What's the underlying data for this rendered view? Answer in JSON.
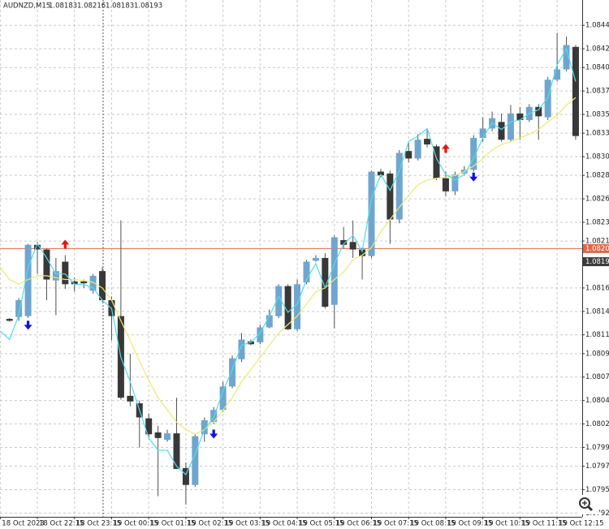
{
  "chart_data": {
    "type": "candlestick",
    "symbol": "AUDNZD,M15",
    "header_ohlc": [
      1.08183,
      1.08216,
      1.08183,
      1.08193
    ],
    "categories": [
      "18 Oct 2023",
      null,
      null,
      null,
      "18 Oct 22:15",
      null,
      null,
      null,
      "18 Oct 23:15",
      null,
      null,
      null,
      "19 Oct 00:15",
      null,
      null,
      null,
      "19 Oct 01:15",
      null,
      null,
      null,
      "19 Oct 02:15",
      null,
      null,
      null,
      "19 Oct 03:15",
      null,
      null,
      null,
      "19 Oct 04:15",
      null,
      null,
      null,
      "19 Oct 05:15",
      null,
      null,
      null,
      "19 Oct 06:15",
      null,
      null,
      null,
      "19 Oct 07:15",
      null,
      null,
      null,
      "19 Oct 08:15",
      null,
      null,
      null,
      "19 Oct 09:15",
      null,
      null,
      null,
      "19 Oct 10:15",
      null,
      null,
      null,
      "19 Oct 11:15",
      null,
      null,
      null,
      "19 Oct 12:15",
      null,
      null
    ],
    "open": [
      null,
      1.08132,
      1.08134,
      1.08135,
      1.08211,
      1.08206,
      1.08173,
      1.08193,
      1.08172,
      1.08172,
      1.08162,
      1.08183,
      1.08152,
      1.08135,
      1.0805,
      1.08042,
      1.08026,
      1.08011,
      1.08003,
      1.0801,
      1.07973,
      1.07955,
      1.08009,
      1.08022,
      1.08035,
      1.0806,
      1.08089,
      1.08108,
      1.08107,
      1.08123,
      1.08135,
      1.08167,
      1.08121,
      1.08171,
      1.08194,
      1.08197,
      1.08147,
      1.08216,
      1.08214,
      1.08206,
      1.08199,
      1.08289,
      1.08287,
      1.08238,
      1.08311,
      1.08303,
      1.08324,
      1.08316,
      1.08282,
      1.08268,
      1.08287,
      1.08291,
      1.08325,
      1.08335,
      1.08342,
      1.08323,
      1.08351,
      1.08344,
      1.08358,
      1.08347,
      1.08387,
      1.08398,
      1.08422
    ],
    "high": [
      null,
      1.08133,
      1.08154,
      1.08212,
      1.08214,
      1.08207,
      1.08197,
      1.082,
      1.08176,
      1.08174,
      1.0818,
      1.08187,
      1.08156,
      1.08237,
      1.08095,
      1.08045,
      1.08031,
      1.08018,
      1.08014,
      1.08048,
      1.07979,
      1.08009,
      1.08027,
      1.08038,
      1.08065,
      1.08093,
      1.08117,
      1.0811,
      1.08126,
      1.08142,
      1.08169,
      1.08169,
      1.08174,
      1.08195,
      1.082,
      1.08202,
      1.08221,
      1.0823,
      1.08237,
      1.08208,
      1.0829,
      1.08292,
      1.0829,
      1.08312,
      1.0832,
      1.08329,
      1.08334,
      1.08318,
      1.08289,
      1.08289,
      1.08295,
      1.08328,
      1.08347,
      1.08353,
      1.08351,
      1.0836,
      1.08358,
      1.08361,
      1.08361,
      1.0839,
      1.08437,
      1.08433,
      1.08424
    ],
    "low": [
      null,
      1.08129,
      1.0813,
      1.08133,
      1.0818,
      1.08152,
      1.08136,
      1.08164,
      1.08161,
      1.08165,
      1.08159,
      1.0815,
      1.08109,
      1.08046,
      1.08039,
      1.07995,
      1.08005,
      1.07943,
      1.08001,
      1.07972,
      1.07934,
      1.07953,
      1.08001,
      1.0802,
      1.08033,
      1.08058,
      1.08086,
      1.08104,
      1.08105,
      1.08122,
      1.08133,
      1.0812,
      1.08119,
      1.08169,
      1.08193,
      1.08143,
      1.08122,
      1.08207,
      1.08197,
      1.08174,
      1.08197,
      1.08283,
      1.08212,
      1.08234,
      1.08299,
      1.08301,
      1.08315,
      1.0828,
      1.08263,
      1.08264,
      1.08285,
      1.08289,
      1.08321,
      1.08332,
      1.08321,
      1.08321,
      1.08323,
      1.08342,
      1.08323,
      1.08344,
      1.08385,
      1.08396,
      1.08323
    ],
    "close": [
      null,
      1.0813,
      1.08152,
      1.08211,
      1.08206,
      1.08174,
      1.08183,
      1.08169,
      1.08169,
      1.0817,
      1.08178,
      1.08152,
      1.08135,
      1.08048,
      1.08044,
      1.08027,
      1.08009,
      1.08005,
      1.0801,
      1.07972,
      1.07955,
      1.08007,
      1.08024,
      1.08035,
      1.0806,
      1.0809,
      1.0811,
      1.08105,
      1.08123,
      1.08136,
      1.08167,
      1.08121,
      1.08169,
      1.08193,
      1.08197,
      1.08145,
      1.08219,
      1.08211,
      1.08206,
      1.08199,
      1.08289,
      1.08285,
      1.08238,
      1.08309,
      1.08303,
      1.08323,
      1.08318,
      1.08282,
      1.08268,
      1.08286,
      1.08291,
      1.08325,
      1.08335,
      1.08346,
      1.08323,
      1.08351,
      1.08344,
      1.08358,
      1.08348,
      1.08387,
      1.08398,
      1.08424,
      1.08327
    ],
    "up_color": "#6fa6cf",
    "down_color": "#383838",
    "wick_color": "#505050",
    "lines": [
      {
        "color": "#ede96e",
        "values": [
          1.08187,
          1.08174,
          1.08169,
          1.08174,
          1.08178,
          1.08178,
          1.08176,
          1.08174,
          1.08174,
          1.08173,
          1.08171,
          1.08165,
          1.08152,
          1.0813,
          1.08109,
          1.08087,
          1.08067,
          1.08048,
          1.08035,
          1.08022,
          1.08014,
          1.08009,
          1.08014,
          1.08022,
          1.08035,
          1.08048,
          1.08065,
          1.08078,
          1.08091,
          1.08104,
          1.08117,
          1.08126,
          1.08135,
          1.08148,
          1.08161,
          1.08165,
          1.08174,
          1.08182,
          1.08195,
          1.082,
          1.08208,
          1.08225,
          1.08238,
          1.08251,
          1.08264,
          1.08275,
          1.0828,
          1.08282,
          1.08283,
          1.08285,
          1.08289,
          1.08295,
          1.08303,
          1.08312,
          1.08318,
          1.08321,
          1.08325,
          1.08329,
          1.08334,
          1.08342,
          1.08349,
          1.0836,
          1.08368
        ]
      },
      {
        "color": "#4fdde8",
        "values": [
          1.08119,
          1.0811,
          1.08136,
          1.08187,
          1.08212,
          1.08197,
          1.0818,
          1.0818,
          1.08169,
          1.08169,
          1.08165,
          1.08152,
          1.08143,
          1.08091,
          1.08065,
          1.08035,
          1.08005,
          1.07992,
          1.07992,
          1.07975,
          1.07966,
          1.07988,
          1.08014,
          1.08027,
          1.08055,
          1.08078,
          1.08104,
          1.08107,
          1.08117,
          1.08135,
          1.08156,
          1.08139,
          1.08148,
          1.08174,
          1.08191,
          1.08165,
          1.08191,
          1.08212,
          1.08221,
          1.08204,
          1.0826,
          1.08286,
          1.08269,
          1.0829,
          1.08321,
          1.08327,
          1.08335,
          1.08303,
          1.08286,
          1.0828,
          1.08286,
          1.08303,
          1.08325,
          1.08341,
          1.08334,
          1.08342,
          1.08344,
          1.08351,
          1.08355,
          1.08368,
          1.08403,
          1.0842,
          1.08385
        ]
      }
    ],
    "up_arrows": {
      "color": "#1010e8",
      "values": [
        null,
        null,
        null,
        1.0813,
        null,
        null,
        null,
        null,
        null,
        null,
        null,
        null,
        null,
        null,
        null,
        null,
        null,
        null,
        null,
        null,
        null,
        null,
        null,
        1.08014,
        null,
        null,
        null,
        null,
        null,
        null,
        null,
        null,
        null,
        null,
        null,
        null,
        null,
        null,
        null,
        null,
        null,
        null,
        null,
        null,
        null,
        null,
        null,
        null,
        null,
        null,
        null,
        1.08288,
        null,
        null,
        null,
        null,
        null,
        null,
        null,
        null,
        null,
        null,
        null
      ]
    },
    "down_arrows": {
      "color": "#ee1111",
      "values": [
        null,
        null,
        null,
        null,
        null,
        null,
        null,
        1.08207,
        null,
        null,
        null,
        null,
        null,
        null,
        null,
        null,
        null,
        null,
        null,
        null,
        null,
        null,
        null,
        null,
        null,
        null,
        null,
        null,
        null,
        null,
        null,
        null,
        null,
        null,
        null,
        null,
        null,
        null,
        null,
        null,
        null,
        null,
        null,
        null,
        null,
        null,
        null,
        null,
        1.08309,
        null,
        null,
        null,
        null,
        null,
        null,
        null,
        null,
        null,
        null,
        null,
        null,
        null,
        null
      ]
    },
    "price_lines": [
      {
        "value": 1.08207,
        "color": "#e2664a",
        "line": true
      },
      {
        "value": 1.08193,
        "color": "#3c3c3c",
        "line": false
      }
    ],
    "ylim": [
      1.07921,
      1.08472
    ],
    "yticks": [
      1.08445,
      {
        "value": 1.0842,
        "label": "1.08420"
      },
      {
        "value": 1.084,
        "label": "1.08400"
      },
      1.08375,
      {
        "value": 1.0835,
        "label": "1.08350"
      },
      {
        "value": 1.0833,
        "label": "1.08330"
      },
      1.08305,
      1.08285,
      {
        "value": 1.0826,
        "label": "1.08260"
      },
      1.08235,
      1.08215,
      1.08165,
      {
        "value": 1.0814,
        "label": "1.08140"
      },
      1.08115,
      1.08095,
      {
        "value": 1.0807,
        "label": "1.08070"
      },
      1.08045,
      {
        "value": 1.0802,
        "label": "1.08020"
      },
      1.07995,
      1.07975,
      {
        "value": 1.0795,
        "label": "1.07950"
      },
      1.07925
    ],
    "grid": true
  }
}
